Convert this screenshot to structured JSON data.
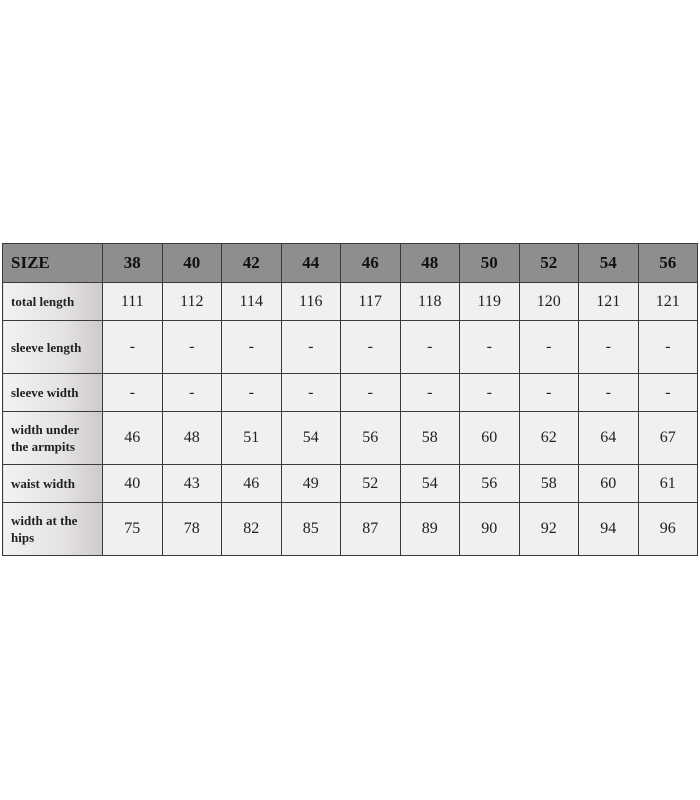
{
  "table": {
    "header": {
      "label": "SIZE",
      "sizes": [
        38,
        40,
        42,
        44,
        46,
        48,
        50,
        52,
        54,
        56
      ]
    },
    "rows": [
      {
        "label": "total length",
        "values": [
          111,
          112,
          114,
          116,
          117,
          118,
          119,
          120,
          121,
          121
        ]
      },
      {
        "label": "sleeve length",
        "values": [
          "-",
          "-",
          "-",
          "-",
          "-",
          "-",
          "-",
          "-",
          "-",
          "-"
        ]
      },
      {
        "label": "sleeve width",
        "values": [
          "-",
          "-",
          "-",
          "-",
          "-",
          "-",
          "-",
          "-",
          "-",
          "-"
        ]
      },
      {
        "label": "width under the armpits",
        "values": [
          46,
          48,
          51,
          54,
          56,
          58,
          60,
          62,
          64,
          67
        ]
      },
      {
        "label": "waist width",
        "values": [
          40,
          43,
          46,
          49,
          52,
          54,
          56,
          58,
          60,
          61
        ]
      },
      {
        "label": "width at the hips",
        "values": [
          75,
          78,
          82,
          85,
          87,
          89,
          90,
          92,
          94,
          96
        ]
      }
    ]
  }
}
